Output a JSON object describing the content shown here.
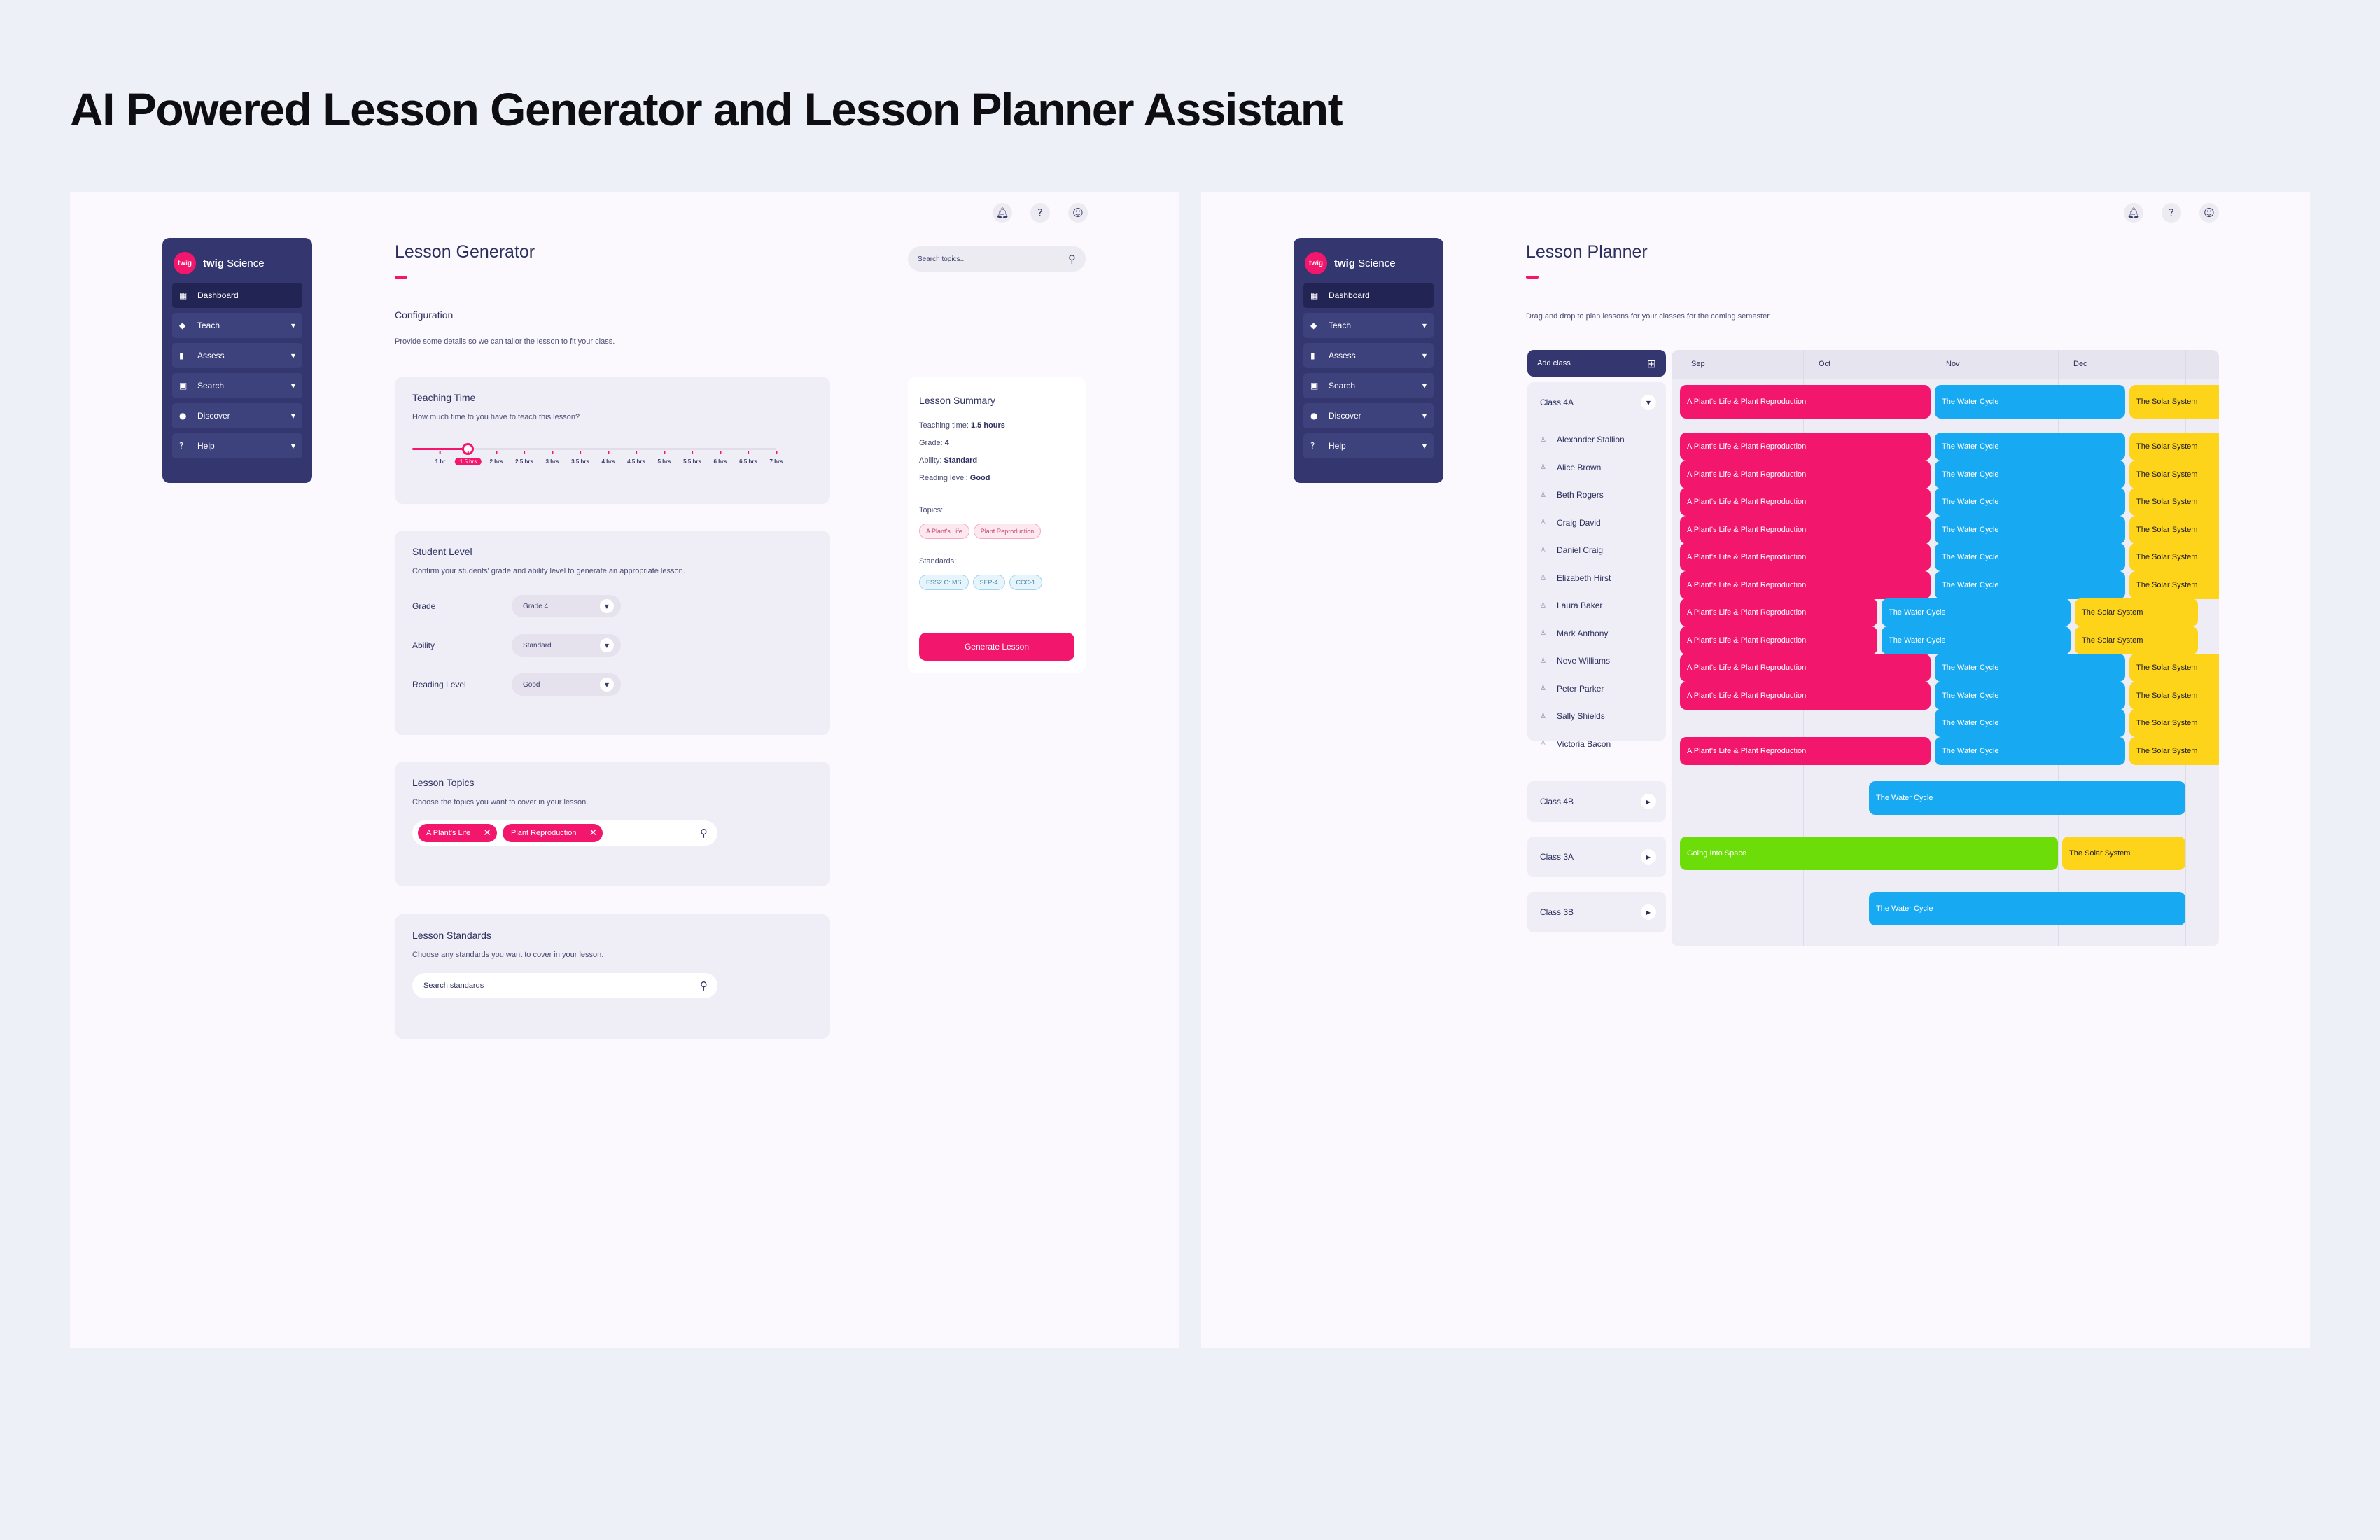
{
  "page_title": "AI Powered Lesson Generator and Lesson Planner Assistant",
  "top_icons": [
    "bell-icon",
    "help-icon",
    "user-icon"
  ],
  "colors": {
    "navy": "#33366f",
    "pink": "#f2166c",
    "blue": "#17aaf2",
    "yellow": "#fdd41a",
    "green": "#6cdd08"
  },
  "sidebar": {
    "brand": "twig",
    "brand_name": "Science",
    "items": [
      {
        "label": "Dashboard",
        "icon": "dashboard-icon",
        "active": true
      },
      {
        "label": "Teach",
        "icon": "graduation-cap-icon"
      },
      {
        "label": "Assess",
        "icon": "bar-chart-icon"
      },
      {
        "label": "Search",
        "icon": "image-search-icon"
      },
      {
        "label": "Discover",
        "icon": "compass-icon"
      },
      {
        "label": "Help",
        "icon": "help-box-icon"
      }
    ]
  },
  "generator": {
    "title": "Lesson Generator",
    "search_placeholder": "Search topics...",
    "config_heading": "Configuration",
    "config_desc": "Provide some details so we can tailor the lesson to fit your class.",
    "teaching_time": {
      "heading": "Teaching Time",
      "question": "How much time to you have to teach this lesson?",
      "options": [
        "1 hr",
        "1.5 hrs",
        "2 hrs",
        "2.5 hrs",
        "3 hrs",
        "3.5 hrs",
        "4 hrs",
        "4.5 hrs",
        "5 hrs",
        "5.5 hrs",
        "6 hrs",
        "6.5 hrs",
        "7 hrs"
      ],
      "selected_index": 1
    },
    "student_level": {
      "heading": "Student Level",
      "desc": "Confirm your students' grade and ability level to generate an appropriate lesson.",
      "grade_label": "Grade",
      "grade_value": "Grade 4",
      "ability_label": "Ability",
      "ability_value": "Standard",
      "reading_label": "Reading Level",
      "reading_value": "Good"
    },
    "topics": {
      "heading": "Lesson Topics",
      "desc": "Choose the topics you want to cover in your lesson.",
      "chips": [
        "A Plant's Life",
        "Plant Reproduction"
      ]
    },
    "standards": {
      "heading": "Lesson Standards",
      "desc": "Choose any standards you want to cover in your lesson.",
      "placeholder": "Search standards"
    },
    "summary": {
      "heading": "Lesson Summary",
      "time_label": "Teaching time:",
      "time_value": "1.5 hours",
      "grade_label": "Grade:",
      "grade_value": "4",
      "ability_label": "Ability:",
      "ability_value": "Standard",
      "reading_label": "Reading level:",
      "reading_value": "Good",
      "topics_label": "Topics:",
      "topics": [
        "A Plant's Life",
        "Plant Reproduction"
      ],
      "standards_label": "Standards:",
      "standards": [
        "ESS2.C: MS",
        "SEP-4",
        "CCC-1"
      ],
      "button": "Generate Lesson"
    }
  },
  "planner": {
    "title": "Lesson Planner",
    "desc": "Drag and drop to plan lessons for your classes for the coming semester",
    "add_class": "Add class",
    "months": [
      "Sep",
      "Oct",
      "Nov",
      "Dec"
    ],
    "class_4a": "Class 4A",
    "students": [
      "Alexander Stallion",
      "Alice Brown",
      "Beth Rogers",
      "Craig David",
      "Daniel Craig",
      "Elizabeth Hirst",
      "Laura Baker",
      "Mark Anthony",
      "Neve Williams",
      "Peter Parker",
      "Sally Shields",
      "Victoria Bacon"
    ],
    "other_classes": [
      "Class 4B",
      "Class 3A",
      "Class 3B"
    ],
    "lessons": {
      "plant": "A Plant's Life & Plant Reproduction",
      "water": "The Water Cycle",
      "solar": "The Solar System",
      "space": "Going Into Space"
    }
  }
}
